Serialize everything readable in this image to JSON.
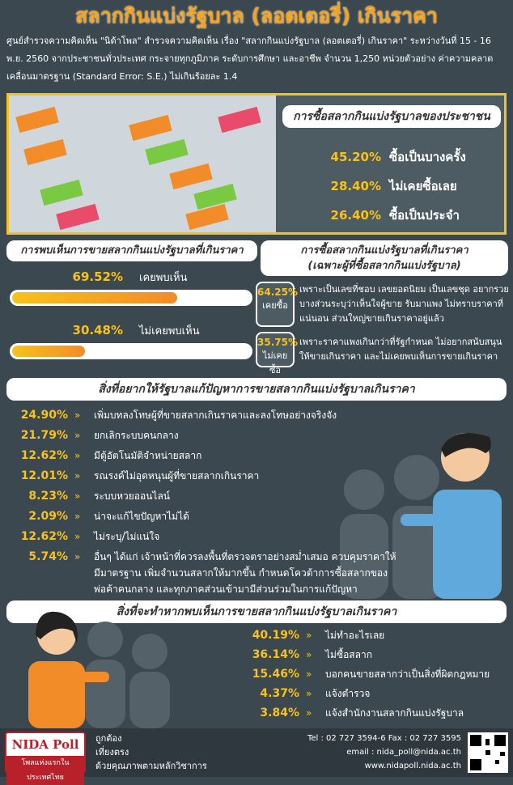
{
  "header": {
    "title": "สลากกินแบ่งรัฐบาล (ลอตเตอรี่) เกินราคา",
    "intro": "ศูนย์สำรวจความคิดเห็น \"นิด้าโพล\" สำรวจความคิดเห็น เรื่อง \"สลากกินแบ่งรัฐบาล (ลอตเตอรี่) เกินราคา\" ระหว่างวันที่ 15 - 16 พ.ย. 2560 จากประชาชนทั่วประเทศ กระจายทุกภูมิภาค ระดับการศึกษา และอาชีพ จำนวน 1,250 หน่วยตัวอย่าง ค่าความคลาดเคลื่อนมาตรฐาน (Standard Error: S.E.) ไม่เกินร้อยละ 1.4"
  },
  "buying": {
    "title": "การซื้อสลากกินแบ่งรัฐบาลของประชาชน",
    "items": [
      {
        "percent": "45.20%",
        "label": "ซื้อเป็นบางครั้ง"
      },
      {
        "percent": "28.40%",
        "label": "ไม่เคยซื้อเลย"
      },
      {
        "percent": "26.40%",
        "label": "ซื้อเป็นประจำ"
      }
    ]
  },
  "seen": {
    "title": "การพบเห็นการขายสลากกินแบ่งรัฐบาลที่เกินราคา",
    "items": [
      {
        "value": 69.52,
        "value_label": "69.52%",
        "label": "เคยพบเห็น"
      },
      {
        "value": 30.48,
        "value_label": "30.48%",
        "label": "ไม่เคยพบเห็น"
      }
    ]
  },
  "overpriced": {
    "title": "การซื้อสลากกินแบ่งรัฐบาลที่เกินราคา",
    "subtitle": "(เฉพาะผู้ที่ซื้อสลากกินแบ่งรัฐบาล)",
    "items": [
      {
        "percent": "64.25%",
        "label": "เคยซื้อ",
        "reason": "เพราะเป็นเลขที่ชอบ เลขยอดนิยม เป็นเลขชุด อยากรวย บางส่วนระบุว่าเห็นใจผู้ขาย รับมาแพง ไม่ทราบราคาที่แน่นอน ส่วนใหญ่ขายเกินราคาอยู่แล้ว"
      },
      {
        "percent": "35.75%",
        "label": "ไม่เคยซื้อ",
        "reason": "เพราะราคาแพงเกินกว่าที่รัฐกำหนด ไม่อยากสนับสนุนให้ขายเกินราคา และไม่เคยพบเห็นการขายเกินราคา"
      }
    ]
  },
  "wishes": {
    "title": "สิ่งที่อยากให้รัฐบาลแก้ปัญหาการขายสลากกินแบ่งรัฐบาลเกินราคา",
    "items": [
      {
        "percent": "24.90%",
        "label": "เพิ่มบทลงโทษผู้ที่ขายสลากเกินราคาและลงโทษอย่างจริงจัง"
      },
      {
        "percent": "21.79%",
        "label": "ยกเลิกระบบคนกลาง"
      },
      {
        "percent": "12.62%",
        "label": "มีตู้อัตโนมัติจำหน่ายสลาก"
      },
      {
        "percent": "12.01%",
        "label": "รณรงค์ไม่อุดหนุนผู้ที่ขายสลากเกินราคา"
      },
      {
        "percent": "8.23%",
        "label": "ระบบหวยออนไลน์"
      },
      {
        "percent": "2.09%",
        "label": "น่าจะแก้ไขปัญหาไม่ได้"
      },
      {
        "percent": "12.62%",
        "label": "ไม่ระบุ/ไม่แน่ใจ"
      },
      {
        "percent": "5.74%",
        "label": "อื่นๆ ได้แก่ เจ้าหน้าที่ควรลงพื้นที่ตรวจตราอย่างสม่ำเสมอ ควบคุมราคาให้มีมาตรฐาน เพิ่มจำนวนสลากให้มากขึ้น กำหนดโควต้าการซื้อสลากของพ่อค้าคนกลาง และทุกภาคส่วนเข้ามามีส่วนร่วมในการแก้ปัญหา"
      }
    ]
  },
  "actions": {
    "title": "สิ่งที่จะทำหากพบเห็นการขายสลากกินแบ่งรัฐบาลเกินราคา",
    "items": [
      {
        "percent": "40.19%",
        "label": "ไม่ทำอะไรเลย"
      },
      {
        "percent": "36.14%",
        "label": "ไม่ซื้อสลาก"
      },
      {
        "percent": "15.46%",
        "label": "บอกคนขายสลากว่าเป็นสิ่งที่ผิดกฎหมาย"
      },
      {
        "percent": "4.37%",
        "label": "แจ้งตำรวจ"
      },
      {
        "percent": "3.84%",
        "label": "แจ้งสำนักงานสลากกินแบ่งรัฐบาล"
      }
    ]
  },
  "footer": {
    "logo": "NIDA Poll",
    "slogan": "โพลแห่งแรกในประเทศไทย",
    "values": [
      "ถูกต้อง",
      "เที่ยงตรง",
      "ด้วยคุณภาพตามหลักวิชาการ"
    ],
    "tel": "Tel : 02 727 3594-6 Fax : 02 727 3595",
    "email": "email : nida_poll@nida.ac.th",
    "web": "www.nidapoll.nida.ac.th"
  }
}
